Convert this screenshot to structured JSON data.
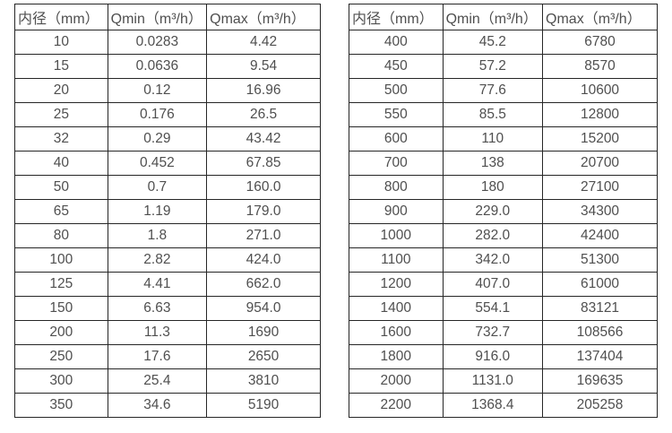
{
  "colors": {
    "background": "#ffffff",
    "table_border": "#262626",
    "text": "#4f4f4f"
  },
  "tables": [
    {
      "name": "flow-table-small-diameters",
      "headers": [
        "内径（mm）",
        "Qmin（m³/h）",
        "Qmax（m³/h）"
      ],
      "rows": [
        [
          "10",
          "0.0283",
          "4.42"
        ],
        [
          "15",
          "0.0636",
          "9.54"
        ],
        [
          "20",
          "0.12",
          "16.96"
        ],
        [
          "25",
          "0.176",
          "26.5"
        ],
        [
          "32",
          "0.29",
          "43.42"
        ],
        [
          "40",
          "0.452",
          "67.85"
        ],
        [
          "50",
          "0.7",
          "160.0"
        ],
        [
          "65",
          "1.19",
          "179.0"
        ],
        [
          "80",
          "1.8",
          "271.0"
        ],
        [
          "100",
          "2.82",
          "424.0"
        ],
        [
          "125",
          "4.41",
          "662.0"
        ],
        [
          "150",
          "6.63",
          "954.0"
        ],
        [
          "200",
          "11.3",
          "1690"
        ],
        [
          "250",
          "17.6",
          "2650"
        ],
        [
          "300",
          "25.4",
          "3810"
        ],
        [
          "350",
          "34.6",
          "5190"
        ]
      ]
    },
    {
      "name": "flow-table-large-diameters",
      "headers": [
        "内径（mm）",
        "Qmin（m³/h）",
        "Qmax（m³/h）"
      ],
      "rows": [
        [
          "400",
          "45.2",
          "6780"
        ],
        [
          "450",
          "57.2",
          "8570"
        ],
        [
          "500",
          "77.6",
          "10600"
        ],
        [
          "550",
          "85.5",
          "12800"
        ],
        [
          "600",
          "110",
          "15200"
        ],
        [
          "700",
          "138",
          "20700"
        ],
        [
          "800",
          "180",
          "27100"
        ],
        [
          "900",
          "229.0",
          "34300"
        ],
        [
          "1000",
          "282.0",
          "42400"
        ],
        [
          "1100",
          "342.0",
          "51300"
        ],
        [
          "1200",
          "407.0",
          "61000"
        ],
        [
          "1400",
          "554.1",
          "83121"
        ],
        [
          "1600",
          "732.7",
          "108566"
        ],
        [
          "1800",
          "916.0",
          "137404"
        ],
        [
          "2000",
          "1131.0",
          "169635"
        ],
        [
          "2200",
          "1368.4",
          "205258"
        ]
      ]
    }
  ]
}
